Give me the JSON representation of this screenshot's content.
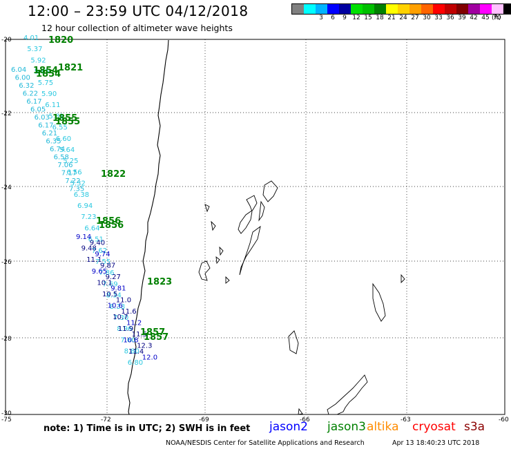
{
  "header": {
    "title": "12:00 – 23:59 UTC 04/12/2018",
    "subtitle": "12 hour collection of altimeter wave heights"
  },
  "legend": {
    "colors": [
      "#808080",
      "#00ffff",
      "#00b4ff",
      "#0000ff",
      "#0000a0",
      "#00e000",
      "#00c000",
      "#008000",
      "#ffff00",
      "#ffd200",
      "#ffa000",
      "#ff6400",
      "#ff0000",
      "#c00000",
      "#800000",
      "#a000a0",
      "#ff00ff",
      "#ffc0ff",
      "#000000"
    ],
    "labels": [
      "3",
      "6",
      "9",
      "12",
      "15",
      "18",
      "21",
      "24",
      "27",
      "30",
      "33",
      "36",
      "39",
      "42",
      "45",
      "70"
    ],
    "unit": "(ft)"
  },
  "axes": {
    "lat_labels": [
      "-20",
      "-22",
      "-24",
      "-26",
      "-28",
      "-30"
    ],
    "lon_labels": [
      "-75",
      "-72",
      "-69",
      "-66",
      "-63",
      "-60"
    ]
  },
  "times": [
    "1820",
    "1821",
    "1854",
    "1854",
    "1855",
    "1855",
    "1822",
    "1856",
    "1856",
    "1823",
    "1857",
    "1857"
  ],
  "observations": {
    "cyan": [
      "4.01",
      "5.37",
      "5.92",
      "5.85",
      "5.75",
      "5.90",
      "6.11",
      "5.81",
      "6.55",
      "6.60",
      "5.64",
      "5.25",
      "6.56",
      "5.32",
      "6.38",
      "6.94",
      "7.23",
      "6.64",
      "6.51",
      "7.62",
      "7.55",
      "7.86",
      "7.69",
      "8.34",
      "8.38",
      "7.30",
      "8.96",
      "7.60",
      "8.80",
      "6.80",
      "6.04",
      "6.00",
      "6.32",
      "6.22",
      "6.17",
      "6.05",
      "6.03",
      "6.17",
      "6.21",
      "6.35",
      "6.74",
      "6.58",
      "7.06",
      "7.17",
      "7.22",
      "7.35"
    ],
    "blue": [
      "9.14",
      "9.40",
      "9.48",
      "9.74",
      "11.1",
      "9.87",
      "9.65",
      "9.27",
      "10.1",
      "9.81",
      "10.5",
      "11.0",
      "10.6",
      "11.6",
      "10.7",
      "11.2",
      "11.9",
      "11.5",
      "10.8",
      "12.3",
      "11.4",
      "12.0"
    ]
  },
  "footer": {
    "note": "note: 1) Time is in UTC; 2) SWH is in feet",
    "satellites": [
      {
        "name": "jason2",
        "color": "#0000ff"
      },
      {
        "name": "jason3",
        "color": "#008000"
      },
      {
        "name": "altika",
        "color": "#ff8c00"
      },
      {
        "name": "cryosat",
        "color": "#ff0000"
      },
      {
        "name": "s3a",
        "color": "#8b0000"
      }
    ],
    "credit": "NOAA/NESDIS Center for Satellite Applications and Research",
    "timestamp": "Apr 13 18:40:23 UTC 2018"
  }
}
